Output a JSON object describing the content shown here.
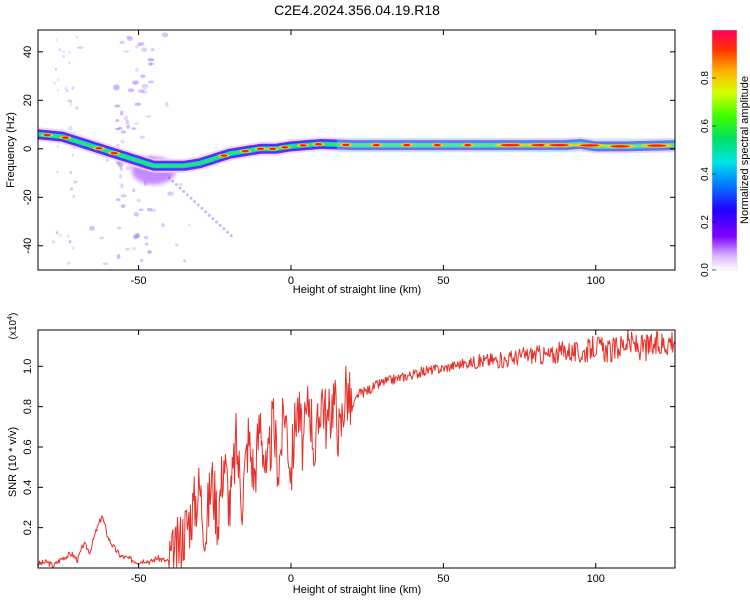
{
  "title": "C2E4.2024.356.04.19.R18",
  "colors": {
    "snr_line": "#e8302a",
    "frame": "#000000",
    "background": "#ffffff"
  },
  "chart_data": [
    {
      "type": "heatmap",
      "xlabel": "Height of straight line (km)",
      "ylabel": "Frequency (Hz)",
      "xlim": [
        -83,
        126
      ],
      "ylim": [
        -50,
        49
      ],
      "xticks": [
        -50,
        0,
        50,
        100
      ],
      "yticks": [
        -40,
        -20,
        0,
        20,
        40
      ],
      "colorbar": {
        "label": "Normalized spectral amplitude",
        "range": [
          0.0,
          1.0
        ],
        "ticks": [
          "0.0",
          "0.2",
          "0.4",
          "0.6",
          "0.8"
        ],
        "colormap": "rainbow (violet-blue-cyan-green-yellow-orange-red)"
      },
      "ridge": {
        "description": "dominant frequency ridge vs height",
        "height_km": [
          -83,
          -75,
          -70,
          -65,
          -60,
          -55,
          -50,
          -45,
          -40,
          -35,
          -30,
          -25,
          -20,
          -15,
          -10,
          -5,
          0,
          5,
          10,
          20,
          30,
          40,
          50,
          60,
          70,
          80,
          90,
          95,
          100,
          110,
          126
        ],
        "frequency_hz": [
          6,
          5,
          3,
          1,
          -1,
          -3,
          -5,
          -7,
          -7,
          -7,
          -6,
          -4,
          -2,
          -1,
          0,
          0,
          1,
          1.5,
          2,
          1.5,
          1.5,
          1.5,
          1.5,
          1.5,
          1.5,
          1.5,
          1.5,
          2,
          1,
          1,
          1.5
        ]
      }
    },
    {
      "type": "line",
      "xlabel": "Height of straight line (km)",
      "ylabel": "SNR (10 * v/v)",
      "y_multiplier": "(x10^4)",
      "xlim": [
        -83,
        126
      ],
      "ylim": [
        0,
        1.18
      ],
      "xticks": [
        -50,
        0,
        50,
        100
      ],
      "yticks": [
        0.2,
        0.4,
        0.6,
        0.8,
        1.0
      ],
      "series": [
        {
          "x": [
            -83,
            -80,
            -78,
            -75,
            -72,
            -70,
            -68,
            -66,
            -64,
            -62,
            -60,
            -58,
            -56,
            -54,
            -52,
            -50,
            -48,
            -46,
            -44,
            -42,
            -40,
            -38,
            -36,
            -34,
            -32,
            -30,
            -28,
            -26,
            -24,
            -22,
            -20,
            -18,
            -16,
            -14,
            -12,
            -10,
            -8,
            -6,
            -4,
            -2,
            0,
            2,
            4,
            6,
            8,
            10,
            12,
            14,
            16,
            18,
            20,
            22,
            25,
            30,
            35,
            40,
            45,
            50,
            55,
            60,
            65,
            70,
            75,
            80,
            85,
            90,
            95,
            100,
            105,
            110,
            115,
            120,
            126
          ],
          "y": [
            0.02,
            0.03,
            0.01,
            0.05,
            0.07,
            0.04,
            0.12,
            0.08,
            0.18,
            0.26,
            0.15,
            0.1,
            0.06,
            0.05,
            0.04,
            0.03,
            0.04,
            0.03,
            0.05,
            0.04,
            0.03,
            0.06,
            0.15,
            0.22,
            0.3,
            0.4,
            0.18,
            0.45,
            0.25,
            0.55,
            0.3,
            0.62,
            0.35,
            0.65,
            0.45,
            0.75,
            0.42,
            0.72,
            0.5,
            0.8,
            0.48,
            0.82,
            0.6,
            0.85,
            0.55,
            0.88,
            0.7,
            0.86,
            0.65,
            0.9,
            0.78,
            0.86,
            0.88,
            0.92,
            0.94,
            0.96,
            0.98,
            0.99,
            1.01,
            1.02,
            1.03,
            1.03,
            1.05,
            1.06,
            1.05,
            1.08,
            1.06,
            1.1,
            1.07,
            1.12,
            1.09,
            1.1,
            1.14
          ]
        }
      ]
    }
  ]
}
